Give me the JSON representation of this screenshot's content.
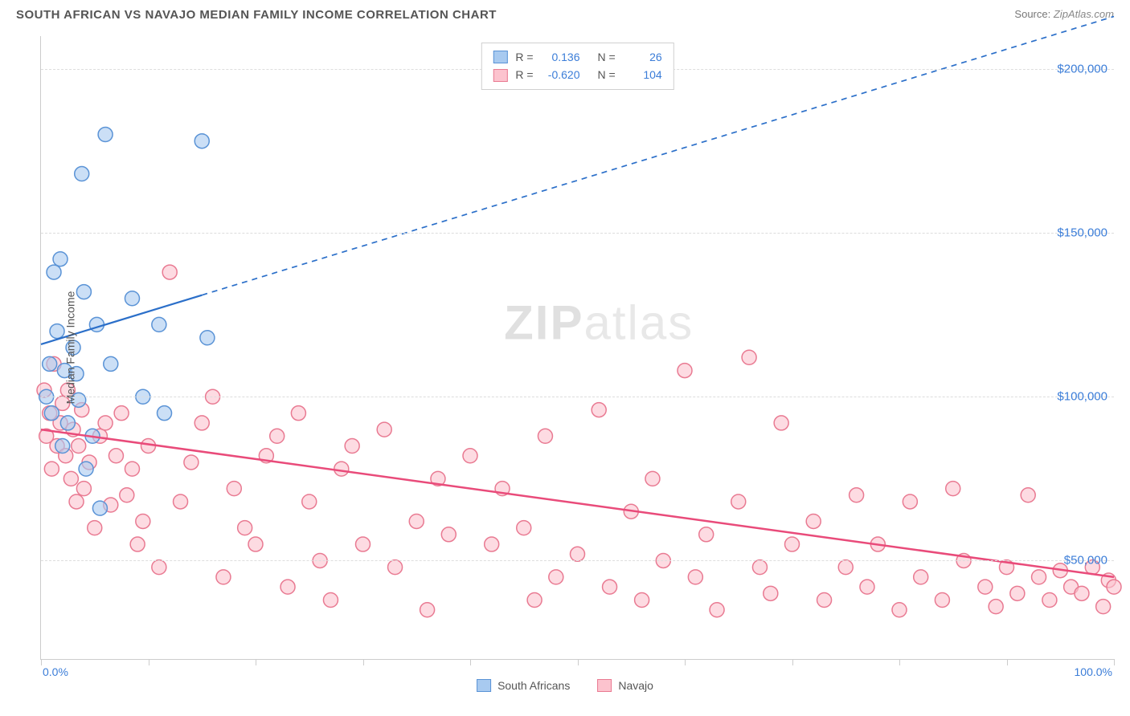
{
  "header": {
    "title": "SOUTH AFRICAN VS NAVAJO MEDIAN FAMILY INCOME CORRELATION CHART",
    "source_label": "Source:",
    "source_value": "ZipAtlas.com"
  },
  "watermark": {
    "bold": "ZIP",
    "rest": "atlas"
  },
  "chart": {
    "type": "scatter",
    "background_color": "#ffffff",
    "grid_color": "#dddddd",
    "axis_color": "#cccccc",
    "x": {
      "min": 0,
      "max": 100,
      "min_label": "0.0%",
      "max_label": "100.0%",
      "tick_positions": [
        0,
        10,
        20,
        30,
        40,
        50,
        60,
        70,
        80,
        90,
        100
      ]
    },
    "y": {
      "min": 20000,
      "max": 210000,
      "title": "Median Family Income",
      "gridlines": [
        50000,
        100000,
        150000,
        200000
      ],
      "labels": [
        "$50,000",
        "$100,000",
        "$150,000",
        "$200,000"
      ],
      "label_color": "#3b7dd8",
      "label_fontsize": 15
    },
    "marker_radius": 9,
    "marker_stroke_width": 1.5,
    "marker_fill_opacity": 0.25,
    "series": [
      {
        "name": "South Africans",
        "color_fill": "#a8caf0",
        "color_stroke": "#5a93d6",
        "R": "0.136",
        "N": "26",
        "trend": {
          "solid_x1": 0,
          "solid_y1": 116000,
          "solid_x2": 15,
          "solid_y2": 131000,
          "dash_x2": 100,
          "dash_y2": 216000,
          "stroke": "#2b6fc9",
          "width": 2.2
        },
        "points": [
          [
            0.5,
            100000
          ],
          [
            0.8,
            110000
          ],
          [
            1.0,
            95000
          ],
          [
            1.2,
            138000
          ],
          [
            1.5,
            120000
          ],
          [
            1.8,
            142000
          ],
          [
            2.0,
            85000
          ],
          [
            2.2,
            108000
          ],
          [
            2.5,
            92000
          ],
          [
            3.0,
            115000
          ],
          [
            3.3,
            107000
          ],
          [
            3.5,
            99000
          ],
          [
            3.8,
            168000
          ],
          [
            4.0,
            132000
          ],
          [
            4.2,
            78000
          ],
          [
            4.8,
            88000
          ],
          [
            5.2,
            122000
          ],
          [
            5.5,
            66000
          ],
          [
            6.0,
            180000
          ],
          [
            6.5,
            110000
          ],
          [
            8.5,
            130000
          ],
          [
            9.5,
            100000
          ],
          [
            11.0,
            122000
          ],
          [
            11.5,
            95000
          ],
          [
            15.0,
            178000
          ],
          [
            15.5,
            118000
          ]
        ]
      },
      {
        "name": "Navajo",
        "color_fill": "#fcc3ce",
        "color_stroke": "#e97a92",
        "R": "-0.620",
        "N": "104",
        "trend": {
          "solid_x1": 0,
          "solid_y1": 90000,
          "solid_x2": 100,
          "solid_y2": 45000,
          "stroke": "#e94b7a",
          "width": 2.5
        },
        "points": [
          [
            0.3,
            102000
          ],
          [
            0.5,
            88000
          ],
          [
            0.8,
            95000
          ],
          [
            1.0,
            78000
          ],
          [
            1.2,
            110000
          ],
          [
            1.5,
            85000
          ],
          [
            1.8,
            92000
          ],
          [
            2.0,
            98000
          ],
          [
            2.3,
            82000
          ],
          [
            2.5,
            102000
          ],
          [
            2.8,
            75000
          ],
          [
            3.0,
            90000
          ],
          [
            3.3,
            68000
          ],
          [
            3.5,
            85000
          ],
          [
            3.8,
            96000
          ],
          [
            4.0,
            72000
          ],
          [
            4.5,
            80000
          ],
          [
            5.0,
            60000
          ],
          [
            5.5,
            88000
          ],
          [
            6.0,
            92000
          ],
          [
            6.5,
            67000
          ],
          [
            7.0,
            82000
          ],
          [
            7.5,
            95000
          ],
          [
            8.0,
            70000
          ],
          [
            8.5,
            78000
          ],
          [
            9.0,
            55000
          ],
          [
            9.5,
            62000
          ],
          [
            10,
            85000
          ],
          [
            11,
            48000
          ],
          [
            12,
            138000
          ],
          [
            13,
            68000
          ],
          [
            14,
            80000
          ],
          [
            15,
            92000
          ],
          [
            16,
            100000
          ],
          [
            17,
            45000
          ],
          [
            18,
            72000
          ],
          [
            19,
            60000
          ],
          [
            20,
            55000
          ],
          [
            21,
            82000
          ],
          [
            22,
            88000
          ],
          [
            23,
            42000
          ],
          [
            24,
            95000
          ],
          [
            25,
            68000
          ],
          [
            26,
            50000
          ],
          [
            27,
            38000
          ],
          [
            28,
            78000
          ],
          [
            29,
            85000
          ],
          [
            30,
            55000
          ],
          [
            32,
            90000
          ],
          [
            33,
            48000
          ],
          [
            35,
            62000
          ],
          [
            36,
            35000
          ],
          [
            37,
            75000
          ],
          [
            38,
            58000
          ],
          [
            40,
            82000
          ],
          [
            42,
            55000
          ],
          [
            43,
            72000
          ],
          [
            45,
            60000
          ],
          [
            46,
            38000
          ],
          [
            47,
            88000
          ],
          [
            48,
            45000
          ],
          [
            50,
            52000
          ],
          [
            52,
            96000
          ],
          [
            53,
            42000
          ],
          [
            55,
            65000
          ],
          [
            56,
            38000
          ],
          [
            57,
            75000
          ],
          [
            58,
            50000
          ],
          [
            60,
            108000
          ],
          [
            61,
            45000
          ],
          [
            62,
            58000
          ],
          [
            63,
            35000
          ],
          [
            65,
            68000
          ],
          [
            66,
            112000
          ],
          [
            67,
            48000
          ],
          [
            68,
            40000
          ],
          [
            69,
            92000
          ],
          [
            70,
            55000
          ],
          [
            72,
            62000
          ],
          [
            73,
            38000
          ],
          [
            75,
            48000
          ],
          [
            76,
            70000
          ],
          [
            77,
            42000
          ],
          [
            78,
            55000
          ],
          [
            80,
            35000
          ],
          [
            81,
            68000
          ],
          [
            82,
            45000
          ],
          [
            84,
            38000
          ],
          [
            85,
            72000
          ],
          [
            86,
            50000
          ],
          [
            88,
            42000
          ],
          [
            89,
            36000
          ],
          [
            90,
            48000
          ],
          [
            91,
            40000
          ],
          [
            92,
            70000
          ],
          [
            93,
            45000
          ],
          [
            94,
            38000
          ],
          [
            95,
            47000
          ],
          [
            96,
            42000
          ],
          [
            97,
            40000
          ],
          [
            98,
            48000
          ],
          [
            99,
            36000
          ],
          [
            99.5,
            44000
          ],
          [
            100,
            42000
          ]
        ]
      }
    ]
  },
  "legend_top": {
    "R_label": "R =",
    "N_label": "N ="
  },
  "legend_bottom": {
    "series1": "South Africans",
    "series2": "Navajo"
  }
}
